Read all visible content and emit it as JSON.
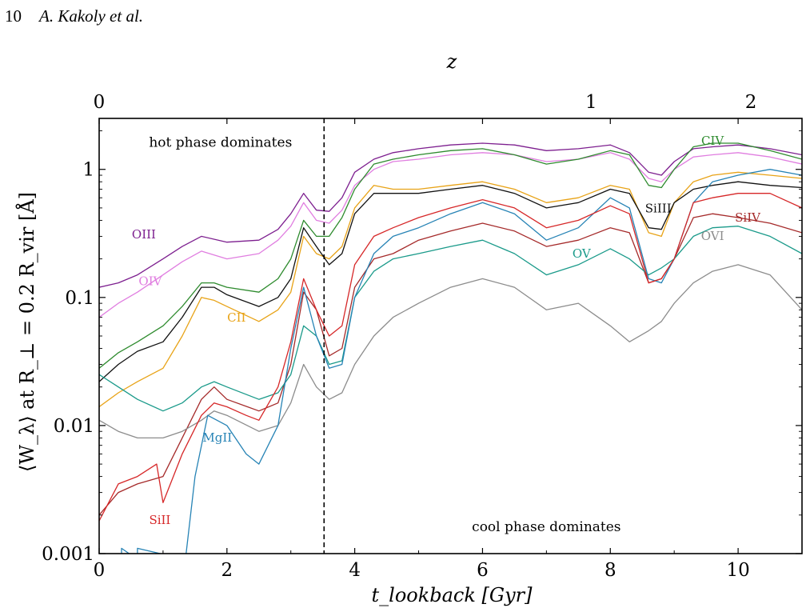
{
  "page_header": {
    "page_number": "10",
    "authors": "A. Kakoly et al."
  },
  "chart_data": {
    "type": "line",
    "xlabel": "t_lookback [Gyr]",
    "ylabel": "⟨W_λ⟩ at R_⊥ = 0.2 R_vir [Å]",
    "top_xlabel": "z",
    "xlim": [
      0,
      11
    ],
    "ylim": [
      0.001,
      2.5
    ],
    "yscale": "log",
    "x_ticks": [
      0,
      2,
      4,
      6,
      8,
      10
    ],
    "y_ticks": [
      {
        "value": 0.001,
        "label": "0.001"
      },
      {
        "value": 0.01,
        "label": "0.01"
      },
      {
        "value": 0.1,
        "label": "0.1"
      },
      {
        "value": 1,
        "label": "1"
      }
    ],
    "top_ticks": [
      {
        "t": 0,
        "label": "0"
      },
      {
        "t": 7.7,
        "label": "1"
      },
      {
        "t": 10.2,
        "label": "2"
      }
    ],
    "vline": {
      "x": 3.52,
      "style": "dashed"
    },
    "annotations": [
      {
        "text": "hot phase dominates",
        "x": 1.9,
        "y": 1.5
      },
      {
        "text": "cool phase dominates",
        "x": 7.0,
        "y": 0.0015
      }
    ],
    "grid": false,
    "series": [
      {
        "name": "OIII",
        "color": "#7d1f8f",
        "label_at": [
          0.7,
          0.29
        ],
        "x": [
          0,
          0.3,
          0.6,
          1.0,
          1.3,
          1.6,
          2.0,
          2.5,
          2.8,
          3.0,
          3.2,
          3.4,
          3.6,
          3.8,
          4.0,
          4.3,
          4.6,
          5.0,
          5.5,
          6.0,
          6.5,
          7.0,
          7.5,
          8.0,
          8.3,
          8.6,
          8.8,
          9.0,
          9.3,
          9.6,
          10.0,
          10.5,
          11.0
        ],
        "values": [
          0.12,
          0.13,
          0.15,
          0.2,
          0.25,
          0.3,
          0.27,
          0.28,
          0.34,
          0.45,
          0.65,
          0.48,
          0.47,
          0.6,
          0.95,
          1.2,
          1.35,
          1.45,
          1.55,
          1.6,
          1.55,
          1.4,
          1.45,
          1.55,
          1.35,
          0.95,
          0.9,
          1.15,
          1.45,
          1.5,
          1.55,
          1.45,
          1.3
        ]
      },
      {
        "name": "OIV",
        "color": "#e07ee0",
        "label_at": [
          0.8,
          0.125
        ],
        "x": [
          0,
          0.3,
          0.6,
          1.0,
          1.3,
          1.6,
          2.0,
          2.5,
          2.8,
          3.0,
          3.2,
          3.4,
          3.6,
          3.8,
          4.0,
          4.3,
          4.6,
          5.0,
          5.5,
          6.0,
          6.5,
          7.0,
          7.5,
          8.0,
          8.3,
          8.6,
          8.8,
          9.0,
          9.3,
          9.6,
          10.0,
          10.5,
          11.0
        ],
        "values": [
          0.07,
          0.09,
          0.11,
          0.15,
          0.19,
          0.23,
          0.2,
          0.22,
          0.28,
          0.36,
          0.55,
          0.4,
          0.38,
          0.48,
          0.75,
          1.0,
          1.15,
          1.2,
          1.3,
          1.35,
          1.3,
          1.15,
          1.2,
          1.35,
          1.2,
          0.85,
          0.8,
          1.0,
          1.25,
          1.3,
          1.35,
          1.25,
          1.1
        ]
      },
      {
        "name": "CIV",
        "color": "#2e8b2e",
        "label_at": [
          9.6,
          1.55
        ],
        "x": [
          0,
          0.3,
          0.6,
          1.0,
          1.3,
          1.6,
          1.8,
          2.0,
          2.5,
          2.8,
          3.0,
          3.2,
          3.4,
          3.6,
          3.8,
          4.0,
          4.3,
          4.6,
          5.0,
          5.5,
          6.0,
          6.5,
          7.0,
          7.5,
          8.0,
          8.3,
          8.6,
          8.8,
          9.0,
          9.3,
          9.6,
          10.0,
          10.5,
          11.0
        ],
        "values": [
          0.028,
          0.037,
          0.045,
          0.06,
          0.085,
          0.13,
          0.13,
          0.12,
          0.11,
          0.14,
          0.2,
          0.4,
          0.3,
          0.3,
          0.42,
          0.7,
          1.1,
          1.2,
          1.3,
          1.4,
          1.45,
          1.3,
          1.1,
          1.2,
          1.4,
          1.3,
          0.75,
          0.72,
          1.0,
          1.5,
          1.6,
          1.6,
          1.4,
          1.2
        ]
      },
      {
        "name": "CII",
        "color": "#e8a317",
        "label_at": [
          2.15,
          0.065
        ],
        "x": [
          0,
          0.3,
          0.6,
          1.0,
          1.3,
          1.6,
          1.8,
          2.0,
          2.5,
          2.8,
          3.0,
          3.2,
          3.4,
          3.6,
          3.8,
          4.0,
          4.3,
          4.6,
          5.0,
          5.5,
          6.0,
          6.5,
          7.0,
          7.5,
          8.0,
          8.3,
          8.6,
          8.8,
          9.0,
          9.3,
          9.6,
          10.0,
          10.5,
          11.0
        ],
        "values": [
          0.014,
          0.018,
          0.022,
          0.028,
          0.05,
          0.1,
          0.095,
          0.085,
          0.065,
          0.08,
          0.11,
          0.3,
          0.22,
          0.2,
          0.25,
          0.5,
          0.75,
          0.7,
          0.7,
          0.75,
          0.8,
          0.7,
          0.55,
          0.6,
          0.75,
          0.7,
          0.32,
          0.3,
          0.55,
          0.8,
          0.9,
          0.95,
          0.9,
          0.85
        ]
      },
      {
        "name": "SiIII",
        "color": "#111111",
        "label_at": [
          8.75,
          0.46
        ],
        "x": [
          0,
          0.3,
          0.6,
          1.0,
          1.3,
          1.6,
          1.8,
          2.0,
          2.5,
          2.8,
          3.0,
          3.2,
          3.4,
          3.6,
          3.8,
          4.0,
          4.3,
          4.6,
          5.0,
          5.5,
          6.0,
          6.5,
          7.0,
          7.5,
          8.0,
          8.3,
          8.6,
          8.8,
          9.0,
          9.3,
          9.6,
          10.0,
          10.5,
          11.0
        ],
        "values": [
          0.022,
          0.03,
          0.038,
          0.045,
          0.07,
          0.12,
          0.12,
          0.105,
          0.085,
          0.1,
          0.14,
          0.35,
          0.25,
          0.18,
          0.22,
          0.45,
          0.65,
          0.65,
          0.65,
          0.7,
          0.75,
          0.65,
          0.5,
          0.55,
          0.7,
          0.65,
          0.35,
          0.34,
          0.55,
          0.7,
          0.75,
          0.8,
          0.75,
          0.72
        ]
      },
      {
        "name": "SiIV",
        "color": "#a52a2a",
        "label_at": [
          10.15,
          0.39
        ],
        "x": [
          0,
          0.3,
          0.6,
          1.0,
          1.3,
          1.6,
          1.8,
          2.0,
          2.5,
          2.8,
          3.0,
          3.2,
          3.4,
          3.6,
          3.8,
          4.0,
          4.3,
          4.6,
          5.0,
          5.5,
          6.0,
          6.5,
          7.0,
          7.5,
          8.0,
          8.3,
          8.6,
          8.8,
          9.0,
          9.3,
          9.6,
          10.0,
          10.5,
          11.0
        ],
        "values": [
          0.002,
          0.003,
          0.0035,
          0.004,
          0.008,
          0.016,
          0.02,
          0.016,
          0.013,
          0.015,
          0.03,
          0.11,
          0.08,
          0.035,
          0.04,
          0.12,
          0.2,
          0.22,
          0.28,
          0.33,
          0.38,
          0.33,
          0.25,
          0.28,
          0.35,
          0.32,
          0.13,
          0.14,
          0.2,
          0.42,
          0.45,
          0.42,
          0.38,
          0.32
        ]
      },
      {
        "name": "OV",
        "color": "#1a9a8a",
        "label_at": [
          7.55,
          0.205
        ],
        "x": [
          0,
          0.3,
          0.6,
          1.0,
          1.3,
          1.6,
          1.8,
          2.0,
          2.5,
          2.8,
          3.0,
          3.2,
          3.4,
          3.6,
          3.8,
          4.0,
          4.3,
          4.6,
          5.0,
          5.5,
          6.0,
          6.5,
          7.0,
          7.5,
          8.0,
          8.3,
          8.6,
          8.8,
          9.0,
          9.3,
          9.6,
          10.0,
          10.5,
          11.0
        ],
        "values": [
          0.025,
          0.02,
          0.016,
          0.013,
          0.015,
          0.02,
          0.022,
          0.02,
          0.016,
          0.018,
          0.025,
          0.06,
          0.05,
          0.03,
          0.032,
          0.1,
          0.16,
          0.2,
          0.22,
          0.25,
          0.28,
          0.22,
          0.15,
          0.18,
          0.24,
          0.2,
          0.15,
          0.17,
          0.2,
          0.3,
          0.35,
          0.36,
          0.3,
          0.22
        ]
      },
      {
        "name": "OVI",
        "color": "#8c8c8c",
        "label_at": [
          9.6,
          0.28
        ],
        "x": [
          0,
          0.3,
          0.6,
          1.0,
          1.3,
          1.6,
          1.8,
          2.0,
          2.5,
          2.8,
          3.0,
          3.2,
          3.4,
          3.6,
          3.8,
          4.0,
          4.3,
          4.6,
          5.0,
          5.5,
          6.0,
          6.5,
          7.0,
          7.5,
          8.0,
          8.3,
          8.6,
          8.8,
          9.0,
          9.3,
          9.6,
          10.0,
          10.5,
          11.0
        ],
        "values": [
          0.011,
          0.009,
          0.008,
          0.008,
          0.009,
          0.011,
          0.013,
          0.012,
          0.009,
          0.01,
          0.015,
          0.03,
          0.02,
          0.016,
          0.018,
          0.03,
          0.05,
          0.07,
          0.09,
          0.12,
          0.14,
          0.12,
          0.08,
          0.09,
          0.06,
          0.045,
          0.055,
          0.065,
          0.09,
          0.13,
          0.16,
          0.18,
          0.15,
          0.08
        ]
      },
      {
        "name": "MgII",
        "color": "#2683b5",
        "label_at": [
          1.85,
          0.0075
        ],
        "x": [
          0.35,
          0.35,
          0.6,
          0.6,
          1.35,
          1.5,
          1.7,
          2.0,
          2.3,
          2.5,
          2.8,
          3.0,
          3.2,
          3.4,
          3.6,
          3.8,
          4.0,
          4.3,
          4.6,
          5.0,
          5.5,
          6.0,
          6.5,
          7.0,
          7.5,
          8.0,
          8.3,
          8.6,
          8.8,
          9.0,
          9.3,
          9.6,
          10.0,
          10.5,
          11.0
        ],
        "values": [
          0.0009,
          0.0011,
          0.0009,
          0.0011,
          0.0009,
          0.004,
          0.012,
          0.01,
          0.006,
          0.005,
          0.01,
          0.04,
          0.12,
          0.05,
          0.028,
          0.03,
          0.1,
          0.22,
          0.3,
          0.35,
          0.45,
          0.55,
          0.45,
          0.28,
          0.35,
          0.6,
          0.5,
          0.14,
          0.13,
          0.2,
          0.55,
          0.8,
          0.9,
          1.0,
          0.9
        ]
      },
      {
        "name": "SiII",
        "color": "#d62728",
        "label_at": [
          0.95,
          0.0017
        ],
        "x": [
          0,
          0.3,
          0.6,
          0.9,
          1.0,
          1.3,
          1.6,
          1.8,
          2.0,
          2.3,
          2.5,
          2.8,
          3.0,
          3.2,
          3.4,
          3.6,
          3.8,
          4.0,
          4.3,
          4.6,
          5.0,
          5.5,
          6.0,
          6.5,
          7.0,
          7.5,
          8.0,
          8.3,
          8.6,
          8.8,
          9.0,
          9.3,
          9.6,
          10.0,
          10.5,
          11.0
        ],
        "values": [
          0.0018,
          0.0035,
          0.004,
          0.005,
          0.0025,
          0.006,
          0.012,
          0.015,
          0.014,
          0.012,
          0.011,
          0.02,
          0.045,
          0.14,
          0.08,
          0.05,
          0.06,
          0.18,
          0.3,
          0.35,
          0.42,
          0.5,
          0.58,
          0.5,
          0.35,
          0.4,
          0.52,
          0.45,
          0.13,
          0.14,
          0.2,
          0.55,
          0.6,
          0.65,
          0.65,
          0.5
        ]
      }
    ]
  }
}
